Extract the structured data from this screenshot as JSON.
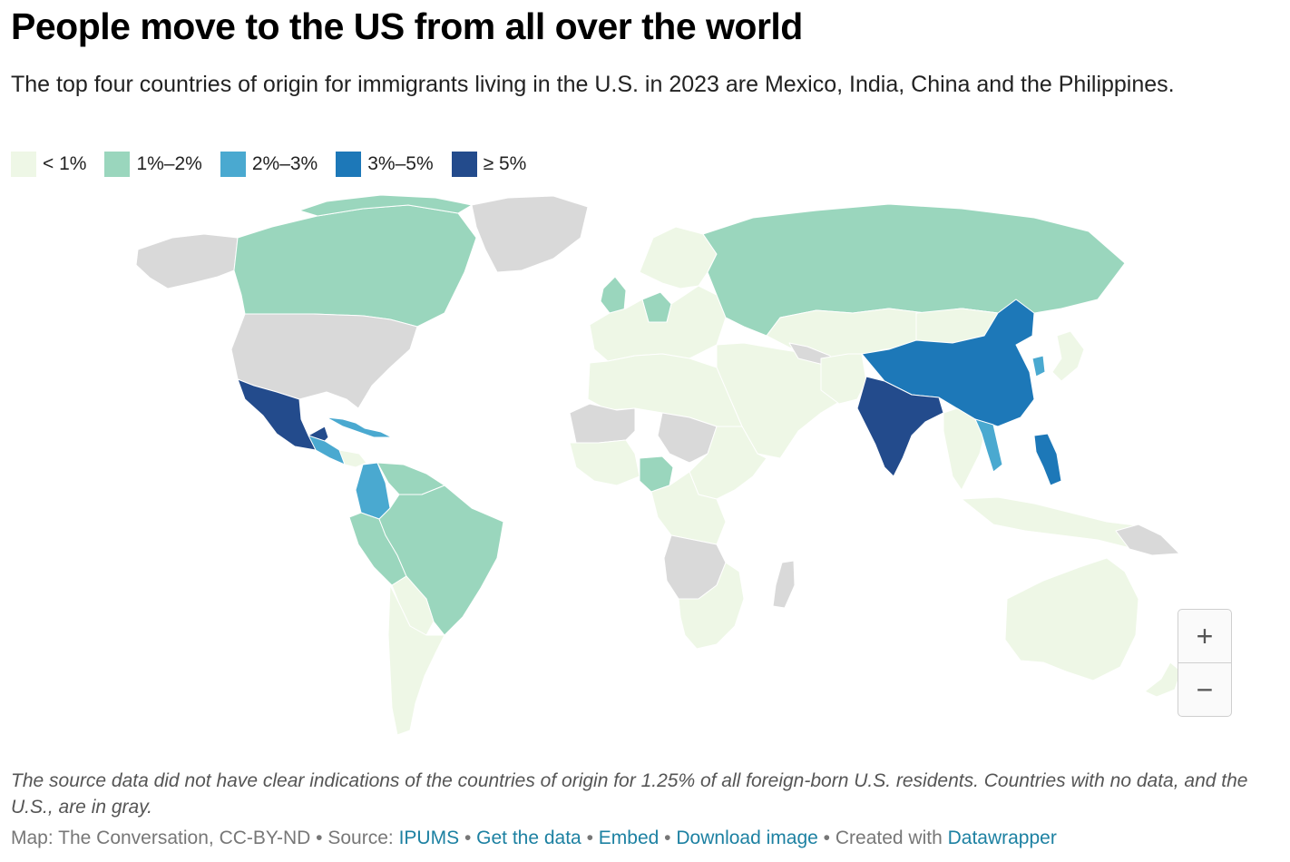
{
  "title": "People move to the US from all over the world",
  "subtitle": "The top four countries of origin for immigrants living in the U.S. in 2023 are Mexico, India, China and the Philippines.",
  "legend": [
    {
      "label": "< 1%",
      "color": "#eef7e6"
    },
    {
      "label": "1%–2%",
      "color": "#9ad6bd"
    },
    {
      "label": "2%–3%",
      "color": "#4aa9d0"
    },
    {
      "label": "3%–5%",
      "color": "#1d78b8"
    },
    {
      "label": "≥ 5%",
      "color": "#234b8c"
    }
  ],
  "map_colors": {
    "no_data": "#d9d9d9",
    "border": "#ffffff"
  },
  "zoom": {
    "in_label": "+",
    "out_label": "−"
  },
  "notes": "The source data did not have clear indications of the countries of origin for 1.25% of all foreign-born U.S. residents. Countries with no data, and the U.S., are in gray.",
  "footer": {
    "map_credit": "Map: The Conversation, CC-BY-ND",
    "source_prefix": "Source:",
    "source_link": "IPUMS",
    "get_data": "Get the data",
    "embed": "Embed",
    "download": "Download image",
    "created_prefix": "Created with",
    "created_link": "Datawrapper",
    "sep": "•"
  }
}
